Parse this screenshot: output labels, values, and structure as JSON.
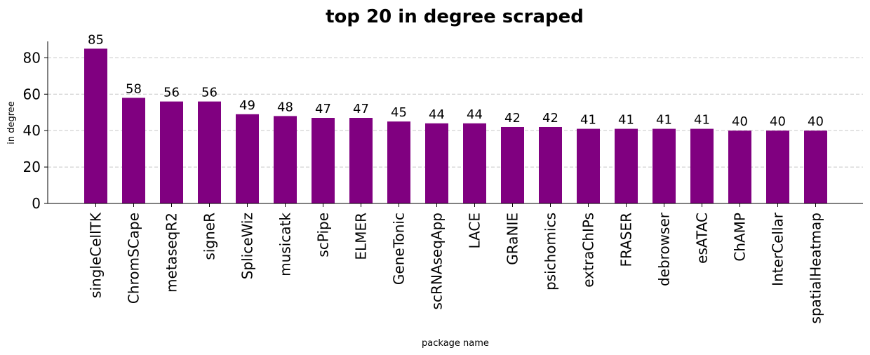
{
  "chart_data": {
    "type": "bar",
    "title": "top 20 in degree scraped",
    "xlabel": "package name",
    "ylabel": "in degree",
    "categories": [
      "singleCellTK",
      "ChromSCape",
      "metaseqR2",
      "signeR",
      "SpliceWiz",
      "musicatk",
      "scPipe",
      "ELMER",
      "GeneTonic",
      "scRNAseqApp",
      "LACE",
      "GRaNIE",
      "psichomics",
      "extraChIPs",
      "FRASER",
      "debrowser",
      "esATAC",
      "ChAMP",
      "InterCellar",
      "spatialHeatmap"
    ],
    "values": [
      85,
      58,
      56,
      56,
      49,
      48,
      47,
      47,
      45,
      44,
      44,
      42,
      42,
      41,
      41,
      41,
      41,
      40,
      40,
      40
    ],
    "ylim": [
      0,
      89
    ],
    "yticks": [
      0,
      20,
      40,
      60,
      80
    ],
    "grid": "y-dashed",
    "bar_color": "#800080",
    "grid_color": "#c8c8c8"
  }
}
